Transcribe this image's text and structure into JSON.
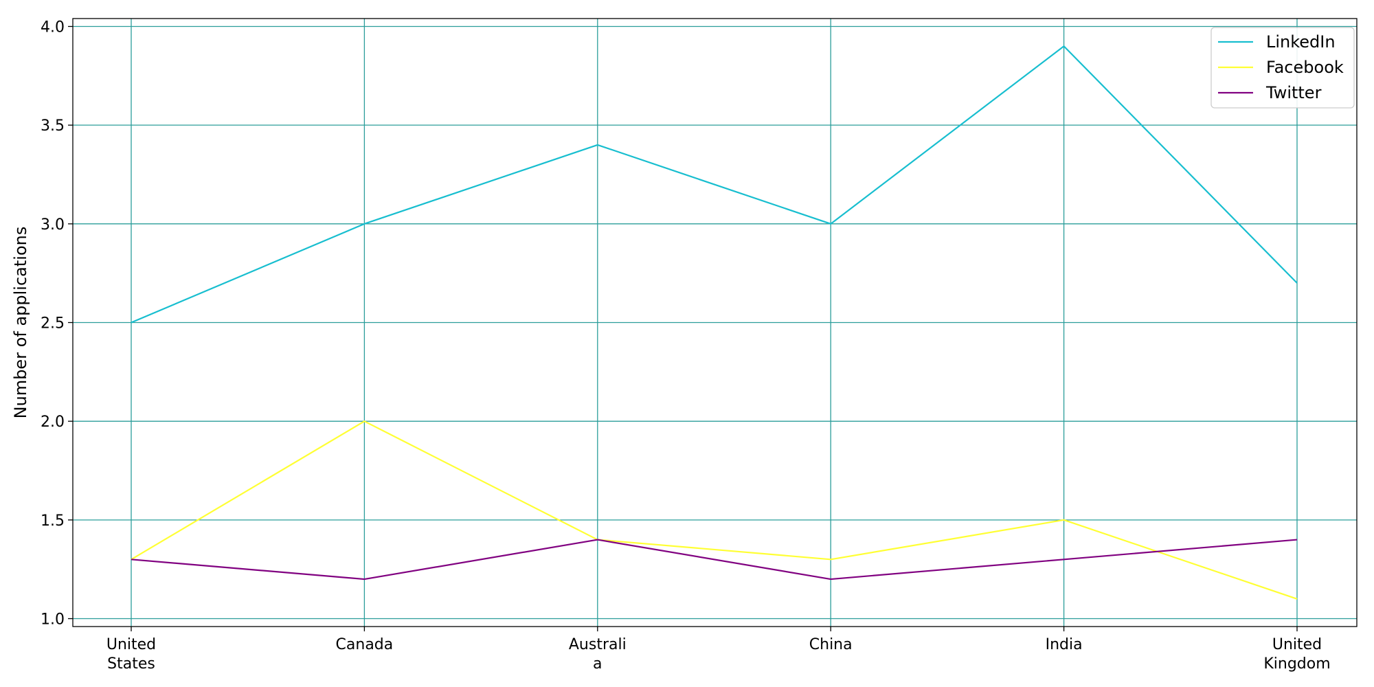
{
  "chart_data": {
    "type": "line",
    "title": "",
    "xlabel": "",
    "ylabel": "Number of applications",
    "categories": [
      [
        "United",
        "States"
      ],
      [
        "Canada"
      ],
      [
        "Australi",
        "a"
      ],
      [
        "China"
      ],
      [
        "India"
      ],
      [
        "United",
        "Kingdom"
      ]
    ],
    "ylim": [
      0.96,
      4.04
    ],
    "yticks": [
      "1.0",
      "1.5",
      "2.0",
      "2.5",
      "3.0",
      "3.5",
      "4.0"
    ],
    "grid": true,
    "grid_color": "#2a9d9a",
    "legend_placement": "top-right",
    "series": [
      {
        "name": "LinkedIn",
        "color": "#17becf",
        "values": [
          2.5,
          3.0,
          3.4,
          3.0,
          3.9,
          2.7
        ]
      },
      {
        "name": "Facebook",
        "color": "#ffff33",
        "values": [
          1.3,
          2.0,
          1.4,
          1.3,
          1.5,
          1.1
        ]
      },
      {
        "name": "Twitter",
        "color": "#800080",
        "values": [
          1.3,
          1.2,
          1.4,
          1.2,
          1.3,
          1.4
        ]
      }
    ]
  }
}
